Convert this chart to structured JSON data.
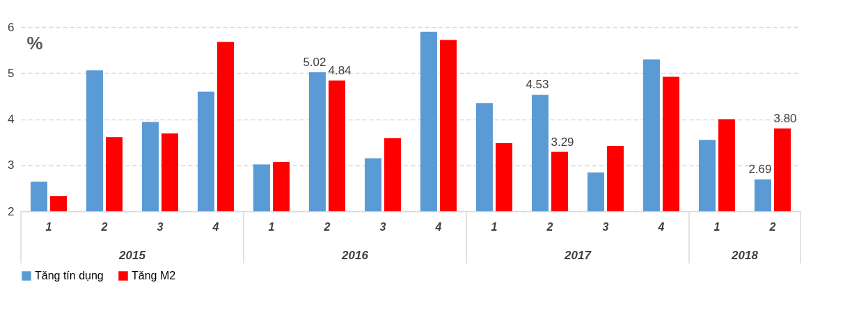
{
  "chart_data": {
    "type": "bar",
    "ylabel": "%",
    "categories": [
      "1",
      "2",
      "3",
      "4",
      "1",
      "2",
      "3",
      "4",
      "1",
      "2",
      "3",
      "4",
      "1",
      "2"
    ],
    "annotations": [
      "2015",
      "2016",
      "2017",
      "2018"
    ],
    "series": [
      {
        "name": "Tăng tín dụng",
        "color": "#5b9bd5",
        "values": [
          2.64,
          5.06,
          3.94,
          4.6,
          3.02,
          5.02,
          3.15,
          5.9,
          4.35,
          4.53,
          2.84,
          5.3,
          3.55,
          2.69
        ],
        "value_labels": [
          null,
          null,
          null,
          null,
          null,
          "5.02",
          null,
          null,
          null,
          "4.53",
          null,
          null,
          null,
          "2.69"
        ]
      },
      {
        "name": "Tăng M2",
        "color": "#ff0000",
        "values": [
          2.33,
          3.61,
          3.69,
          5.68,
          3.07,
          4.84,
          3.59,
          5.72,
          3.48,
          3.29,
          3.42,
          4.92,
          4.0,
          3.8
        ],
        "value_labels": [
          null,
          null,
          null,
          null,
          null,
          "4.84",
          null,
          null,
          null,
          "3.29",
          null,
          null,
          null,
          "3.80"
        ]
      }
    ],
    "ylim": [
      2,
      6
    ],
    "yticks": [
      2,
      3,
      4,
      5,
      6
    ],
    "grid": "y",
    "legend": "bottom"
  }
}
